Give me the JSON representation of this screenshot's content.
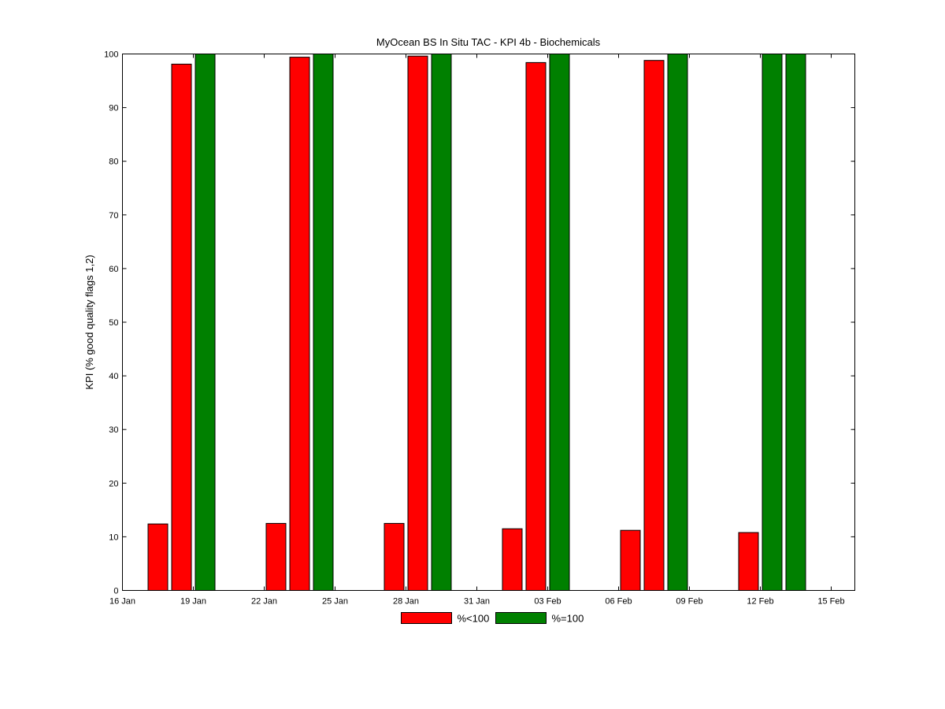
{
  "chart_data": {
    "type": "bar",
    "title": "MyOcean  BS In Situ TAC - KPI 4b - Biochemicals",
    "ylabel": "KPI (% good quality flags 1,2)",
    "xlabel": "",
    "ylim": [
      0,
      100
    ],
    "xlim": [
      "2011-01-16",
      "2011-02-16"
    ],
    "x_tick_labels": [
      "16 Jan",
      "19 Jan",
      "22 Jan",
      "25 Jan",
      "28 Jan",
      "31 Jan",
      "03 Feb",
      "06 Feb",
      "09 Feb",
      "12 Feb",
      "15 Feb"
    ],
    "y_ticks": [
      0,
      10,
      20,
      30,
      40,
      50,
      60,
      70,
      80,
      90,
      100
    ],
    "grid": false,
    "legend_position": "bottom",
    "series": [
      {
        "name": "%<100",
        "color": "#ff0000",
        "points": [
          {
            "x": "2011-01-17",
            "y": 12.4
          },
          {
            "x": "2011-01-18",
            "y": 98.1
          },
          {
            "x": "2011-01-22",
            "y": 12.5
          },
          {
            "x": "2011-01-23",
            "y": 99.4
          },
          {
            "x": "2011-01-27",
            "y": 12.5
          },
          {
            "x": "2011-01-28",
            "y": 99.6
          },
          {
            "x": "2011-02-01",
            "y": 11.5
          },
          {
            "x": "2011-02-02",
            "y": 98.4
          },
          {
            "x": "2011-02-06",
            "y": 11.2
          },
          {
            "x": "2011-02-07",
            "y": 98.8
          },
          {
            "x": "2011-02-11",
            "y": 10.8
          }
        ]
      },
      {
        "name": "%=100",
        "color": "#008000",
        "points": [
          {
            "x": "2011-01-19",
            "y": 100
          },
          {
            "x": "2011-01-24",
            "y": 100
          },
          {
            "x": "2011-01-29",
            "y": 100
          },
          {
            "x": "2011-02-03",
            "y": 100
          },
          {
            "x": "2011-02-08",
            "y": 100
          },
          {
            "x": "2011-02-12",
            "y": 100
          },
          {
            "x": "2011-02-13",
            "y": 100
          }
        ]
      }
    ]
  }
}
